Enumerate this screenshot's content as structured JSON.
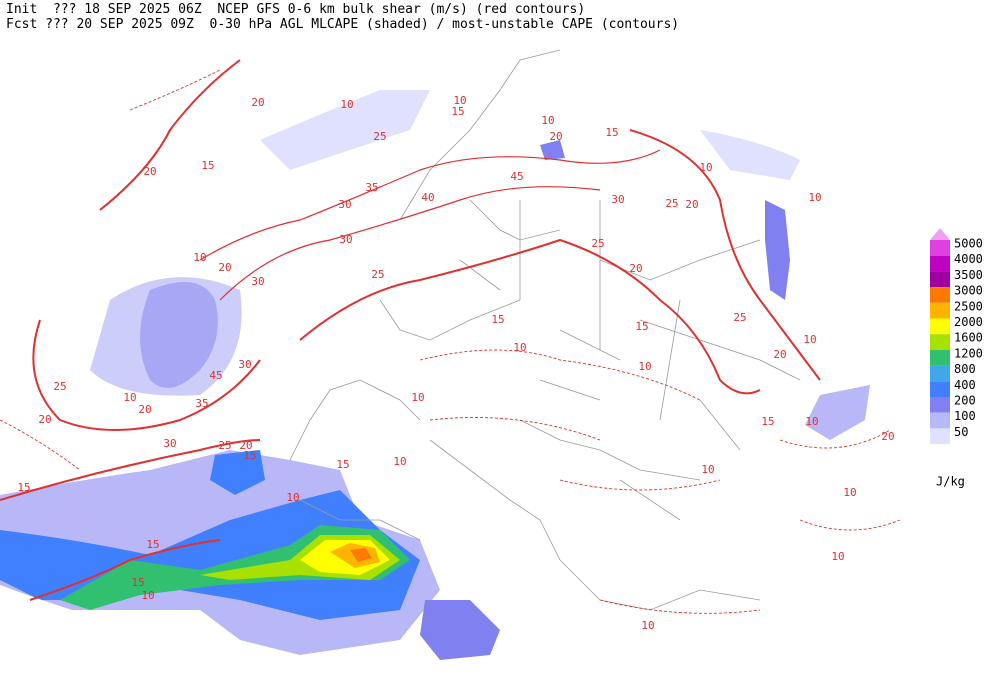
{
  "header": {
    "line1": "Init  ??? 18 SEP 2025 06Z  NCEP GFS 0-6 km bulk shear (m/s) (red contours)",
    "line2": "Fcst ??? 20 SEP 2025 09Z  0-30 hPa AGL MLCAPE (shaded) / most-unstable CAPE (contours)"
  },
  "colorbar": {
    "unit": "J/kg",
    "levels": [
      {
        "value": 5000,
        "color": "#e040e0"
      },
      {
        "value": 4000,
        "color": "#c000c0"
      },
      {
        "value": 3500,
        "color": "#a000a0"
      },
      {
        "value": 3000,
        "color": "#ff7800"
      },
      {
        "value": 2500,
        "color": "#ffb400"
      },
      {
        "value": 2000,
        "color": "#ffff00"
      },
      {
        "value": 1600,
        "color": "#a8e000"
      },
      {
        "value": 1200,
        "color": "#30c070"
      },
      {
        "value": 800,
        "color": "#40a8e8"
      },
      {
        "value": 400,
        "color": "#4080ff"
      },
      {
        "value": 200,
        "color": "#8080f0"
      },
      {
        "value": 100,
        "color": "#b8b8f8"
      },
      {
        "value": 50,
        "color": "#e0e0ff"
      }
    ]
  },
  "shear_contour_labels": [
    20,
    10,
    15,
    10,
    10,
    20,
    15,
    10,
    45,
    40,
    35,
    30,
    25,
    15,
    20,
    30,
    25,
    20,
    25,
    20,
    15,
    25,
    30,
    10,
    20,
    30,
    45,
    30,
    35,
    20,
    10,
    25,
    20,
    30,
    25,
    20,
    15,
    10,
    15,
    10,
    10,
    10,
    15,
    10,
    25,
    20,
    10,
    10,
    15,
    10,
    10,
    10,
    15,
    15,
    15,
    10,
    10,
    20,
    10
  ]
}
